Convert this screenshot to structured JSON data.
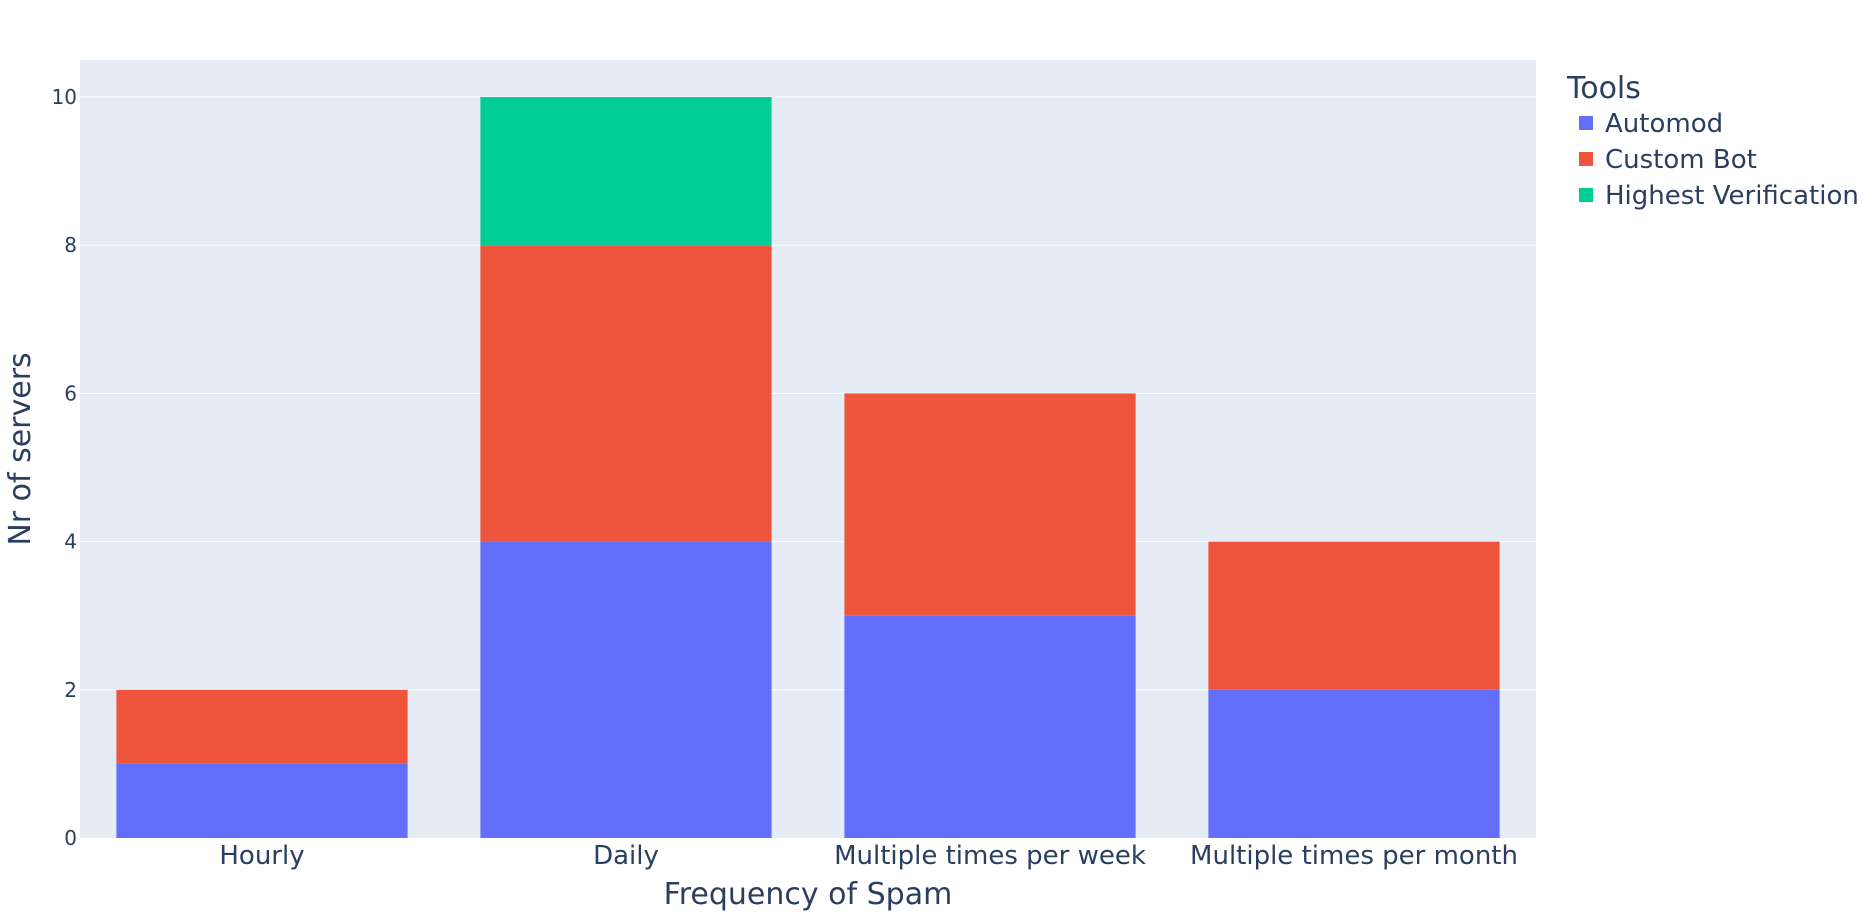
{
  "chart_data": {
    "type": "bar",
    "barmode": "stack",
    "categories": [
      "Hourly",
      "Daily",
      "Multiple times per week",
      "Multiple times per month"
    ],
    "series": [
      {
        "name": "Automod",
        "values": [
          1,
          4,
          3,
          2
        ],
        "color": "#636efa"
      },
      {
        "name": "Custom Bot",
        "values": [
          1,
          4,
          3,
          2
        ],
        "color": "#ef553b"
      },
      {
        "name": "Highest Verification",
        "values": [
          0,
          2,
          0,
          0
        ],
        "color": "#00cc96"
      }
    ],
    "xlabel": "Frequency of Spam",
    "ylabel": "Nr of servers",
    "ylim": [
      0,
      10.5
    ],
    "yticks": [
      0,
      2,
      4,
      6,
      8,
      10
    ],
    "legend_title": "Tools",
    "legend_position": "top-right",
    "grid": true,
    "plot_bgcolor": "#e5ecf6"
  }
}
